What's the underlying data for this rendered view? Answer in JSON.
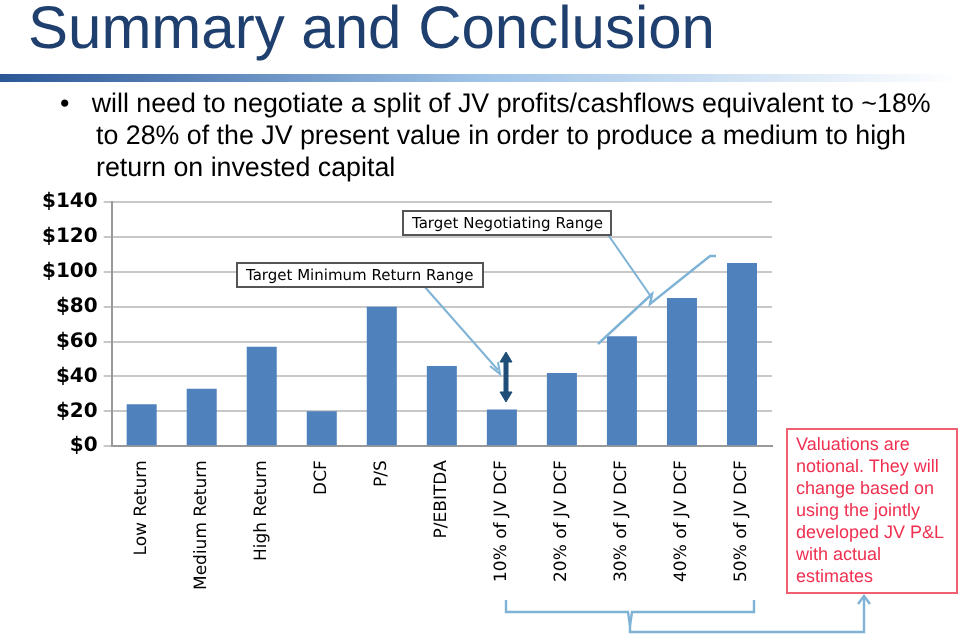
{
  "chart_data": {
    "type": "bar",
    "title": "Summary and Conclusion",
    "subtitle": "•   will need to negotiate a split of JV profits/cashflows equivalent to ~18% to 28% of the JV present value in order to produce a medium to high return on invested capital",
    "categories": [
      "Low Return",
      "Medium Return",
      "High Return",
      "DCF",
      "P/S",
      "P/EBITDA",
      "10% of JV DCF",
      "20% of JV DCF",
      "30% of JV DCF",
      "40% of JV DCF",
      "50% of JV DCF"
    ],
    "values": [
      24,
      33,
      57,
      20,
      80,
      46,
      21,
      42,
      63,
      85,
      105
    ],
    "color": "#4f81bd",
    "ylim": [
      0,
      140
    ],
    "yticks": [
      {
        "value": 0,
        "label": "$0"
      },
      {
        "value": 20,
        "label": "$20"
      },
      {
        "value": 40,
        "label": "$40"
      },
      {
        "value": 60,
        "label": "$60"
      },
      {
        "value": 80,
        "label": "$80"
      },
      {
        "value": 100,
        "label": "$100"
      },
      {
        "value": 120,
        "label": "$120"
      },
      {
        "value": 140,
        "label": "$140"
      }
    ],
    "grid": "y",
    "annotations": [
      "Target Minimum Return Range",
      "Target Negotiating Range",
      "Valuations are notional. They will change based on using the jointly developed JV P&L with actual estimates"
    ]
  }
}
